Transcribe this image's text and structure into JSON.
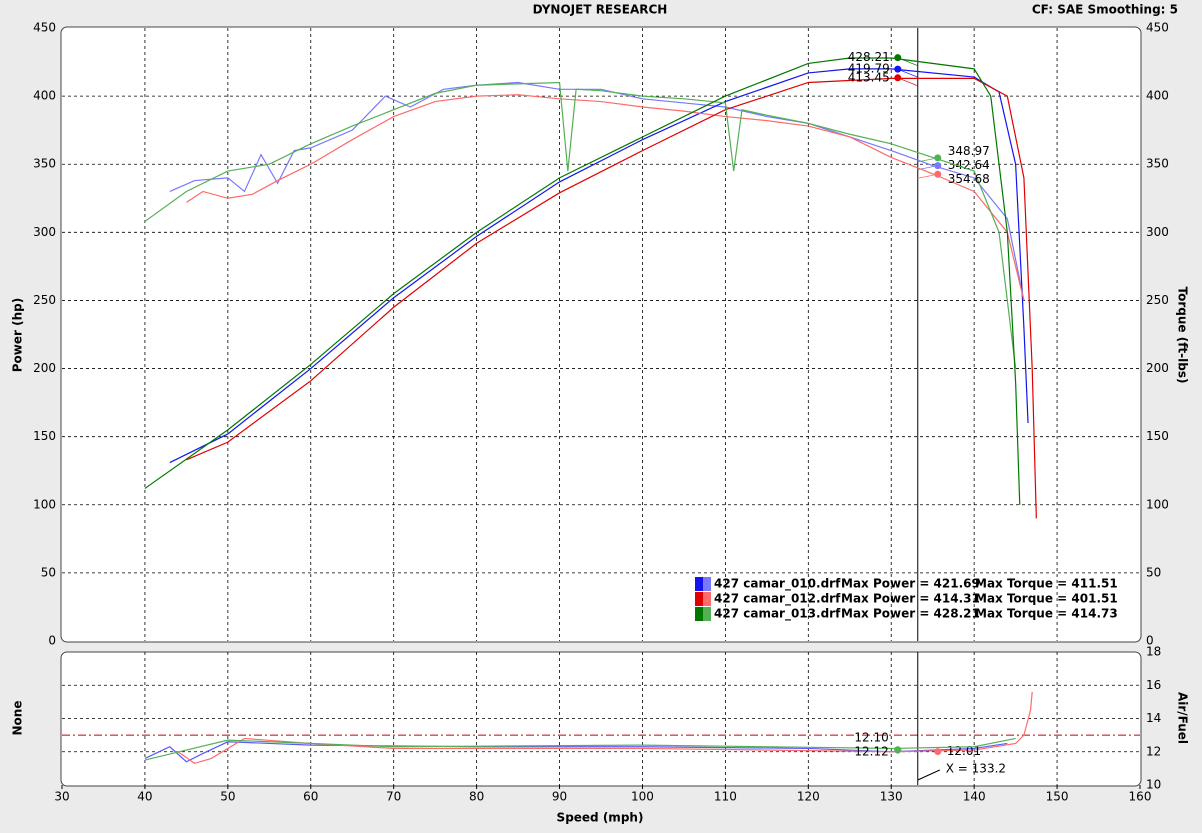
{
  "header": {
    "title": "DYNOJET RESEARCH",
    "settings": "CF: SAE  Smoothing: 5"
  },
  "chart_data": [
    {
      "type": "line",
      "ylabel": "Power (hp)",
      "y2label": "Torque (ft-lbs)",
      "xlim": [
        30,
        160
      ],
      "xticks": [
        30,
        40,
        50,
        60,
        70,
        80,
        90,
        100,
        110,
        120,
        130,
        140,
        150,
        160
      ],
      "ylim": [
        0,
        450
      ],
      "yticks": [
        0,
        50,
        100,
        150,
        200,
        250,
        300,
        350,
        400,
        450
      ],
      "y2lim": [
        0,
        450
      ],
      "y2ticks": [
        0,
        50,
        100,
        150,
        200,
        250,
        300,
        350,
        400,
        450
      ],
      "grid": true,
      "cursor_x": 133.2,
      "series": [
        {
          "name": "427 camar_010.drf",
          "color": "#1414f0",
          "torque_color": "#7878ff",
          "max_power_label": "Max Power = 421.69",
          "max_torque_label": "Max Torque = 411.51",
          "x": [
            43,
            50,
            60,
            70,
            80,
            90,
            100,
            110,
            120,
            125,
            130,
            140,
            143,
            145,
            146,
            146.5
          ],
          "power": [
            131,
            152,
            200,
            252,
            297,
            337,
            368,
            396,
            417,
            420,
            420,
            414,
            403,
            350,
            230,
            160
          ],
          "torque_x": [
            43,
            46,
            50,
            52,
            54,
            56,
            58,
            60,
            65,
            69,
            72,
            76,
            80,
            85,
            90,
            95,
            100,
            105,
            110,
            115,
            120,
            125,
            130,
            135,
            140,
            144,
            146
          ],
          "torque": [
            330,
            338,
            340,
            330,
            357,
            336,
            360,
            362,
            375,
            400,
            392,
            405,
            408,
            410,
            405,
            405,
            398,
            395,
            392,
            385,
            380,
            370,
            360,
            349,
            340,
            310,
            250
          ],
          "cursor_power": 419.79,
          "cursor_torque": 348.97
        },
        {
          "name": "427 camar_012.drf",
          "color": "#e00000",
          "torque_color": "#ff6a6a",
          "max_power_label": "Max Power = 414.31",
          "max_torque_label": "Max Torque = 401.51",
          "x": [
            45,
            50,
            60,
            70,
            80,
            90,
            100,
            110,
            120,
            130,
            140,
            144,
            146,
            147,
            147.5
          ],
          "power": [
            133,
            146,
            191,
            245,
            292,
            329,
            360,
            390,
            410,
            413,
            413,
            400,
            340,
            200,
            90
          ],
          "torque_x": [
            45,
            47,
            50,
            53,
            56,
            60,
            65,
            70,
            75,
            80,
            85,
            90,
            95,
            100,
            105,
            110,
            115,
            120,
            125,
            130,
            135,
            140,
            144,
            146
          ],
          "torque": [
            322,
            330,
            325,
            328,
            338,
            350,
            368,
            385,
            396,
            400,
            401,
            398,
            396,
            392,
            389,
            385,
            382,
            378,
            370,
            355,
            343,
            330,
            300,
            250
          ],
          "cursor_power": 413.45,
          "cursor_torque": 342.64
        },
        {
          "name": "427 camar_013.drf",
          "color": "#007800",
          "torque_color": "#54b054",
          "max_power_label": "Max Power = 428.21",
          "max_torque_label": "Max Torque = 414.73",
          "x": [
            40,
            50,
            60,
            70,
            80,
            90,
            100,
            110,
            120,
            125,
            130,
            140,
            142,
            144,
            145,
            145.5
          ],
          "power": [
            112,
            155,
            203,
            255,
            300,
            340,
            370,
            400,
            424,
            428,
            428,
            420,
            400,
            300,
            190,
            100
          ],
          "torque_x": [
            40,
            45,
            50,
            55,
            60,
            65,
            70,
            75,
            80,
            85,
            90,
            91,
            92,
            95,
            100,
            105,
            110,
            111,
            112,
            115,
            120,
            125,
            130,
            135,
            140,
            143,
            145
          ],
          "torque": [
            308,
            330,
            345,
            350,
            365,
            378,
            390,
            402,
            408,
            409,
            410,
            345,
            405,
            404,
            400,
            398,
            395,
            345,
            390,
            386,
            380,
            372,
            365,
            355,
            345,
            300,
            200
          ],
          "cursor_power": 428.21,
          "cursor_torque": 354.68
        }
      ]
    },
    {
      "type": "line",
      "ylabel": "None",
      "y2label": "Air/Fuel",
      "xlabel": "Speed (mph)",
      "xlim": [
        30,
        160
      ],
      "xticks": [
        30,
        40,
        50,
        60,
        70,
        80,
        90,
        100,
        110,
        120,
        130,
        140,
        150,
        160
      ],
      "y2lim": [
        10,
        18
      ],
      "y2ticks": [
        10,
        12,
        14,
        16,
        18
      ],
      "reference_y": 13,
      "cursor_x": 133.2,
      "cursor_label": "X = 133.2",
      "series": [
        {
          "color": "#5a5aff",
          "x": [
            40,
            43,
            45,
            47,
            50,
            55,
            60,
            80,
            100,
            120,
            130,
            140,
            144
          ],
          "values": [
            11.6,
            12.3,
            11.4,
            11.9,
            12.6,
            12.5,
            12.4,
            12.3,
            12.3,
            12.2,
            12.0,
            12.2,
            12.5
          ],
          "cursor_value": 12.1,
          "cursor_label": "12.10"
        },
        {
          "color": "#ff6a6a",
          "x": [
            44,
            46,
            48,
            52,
            60,
            70,
            100,
            130,
            140,
            145,
            146,
            146.8,
            147
          ],
          "values": [
            12.0,
            11.3,
            11.6,
            12.8,
            12.5,
            12.2,
            12.2,
            12.0,
            12.1,
            12.5,
            13.0,
            14.5,
            15.6
          ],
          "cursor_value": 12.01,
          "cursor_label": "12.01"
        },
        {
          "color": "#54b054",
          "x": [
            40,
            45,
            50,
            55,
            70,
            100,
            130,
            140,
            145
          ],
          "values": [
            11.5,
            12.1,
            12.7,
            12.6,
            12.3,
            12.4,
            12.2,
            12.3,
            12.8
          ],
          "cursor_value": 12.12,
          "cursor_label": "12.12"
        }
      ]
    }
  ]
}
